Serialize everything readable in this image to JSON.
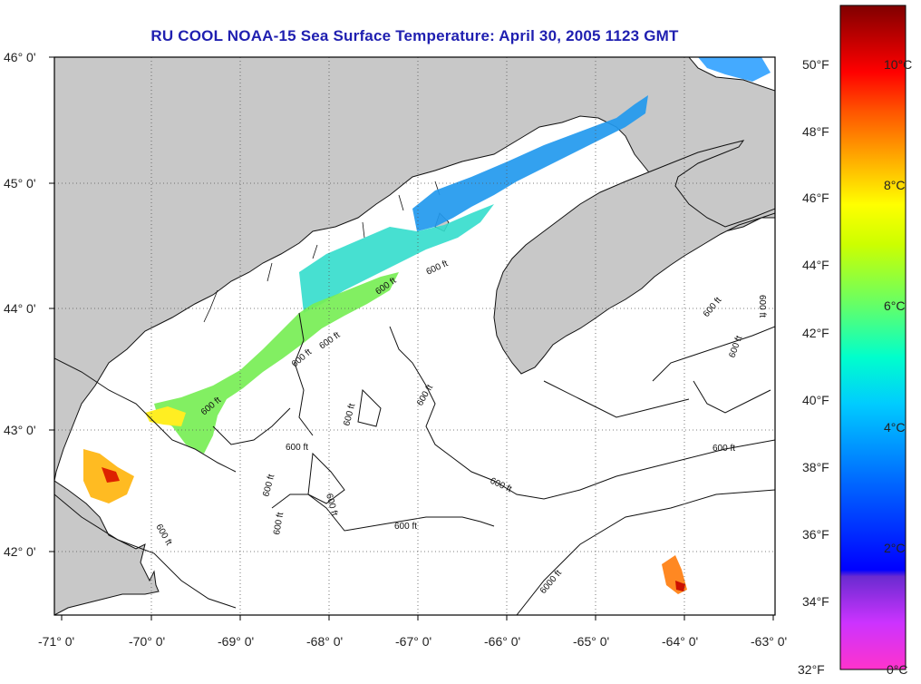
{
  "title": "RU COOL  NOAA-15  Sea Surface Temperature:  April 30, 2005 1123 GMT",
  "latitude_labels": [
    "46° 0'",
    "45° 0'",
    "44° 0'",
    "43° 0'",
    "42° 0'"
  ],
  "longitude_labels": [
    "-71° 0'",
    "-70° 0'",
    "-69° 0'",
    "-68° 0'",
    "-67° 0'",
    "-66° 0'",
    "-65° 0'",
    "-64° 0'",
    "-63° 0'"
  ],
  "fahrenheit_labels": [
    "50°F",
    "48°F",
    "46°F",
    "44°F",
    "42°F",
    "40°F",
    "38°F",
    "36°F",
    "34°F",
    "32°F"
  ],
  "celsius_labels": [
    "10°C",
    "8°C",
    "6°C",
    "4°C",
    "2°C",
    "0°C"
  ],
  "contour_labels": [
    "600 ft",
    "600 ft",
    "600 ft",
    "600 ft",
    "600 ft",
    "600 ft",
    "600 ft",
    "600 ft",
    "600 ft",
    "600 ft",
    "600 ft",
    "600 ft",
    "600 ft",
    "600 ft",
    "600 ft",
    "6000 ft"
  ],
  "colors": {
    "land": "#c8c8c8",
    "title": "#1f1fb0",
    "grid": "#555555"
  }
}
